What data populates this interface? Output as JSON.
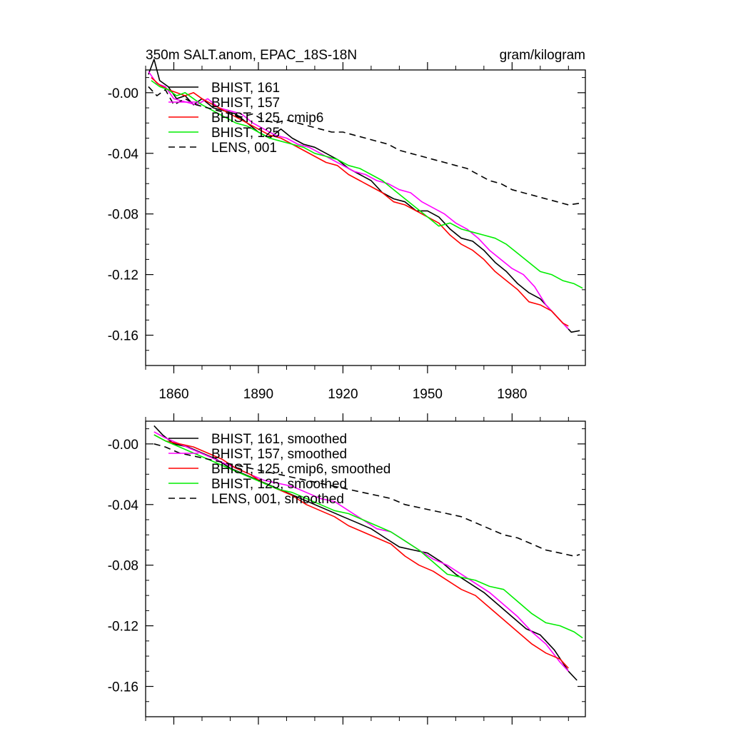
{
  "header": {
    "title": "350m SALT.anom, EPAC_18S-18N",
    "units": "gram/kilogram"
  },
  "colors": {
    "BHIST_161": "#000000",
    "BHIST_157": "#ff00ff",
    "BHIST_125_cmip6": "#ff0000",
    "BHIST_125": "#00ee00",
    "LENS_001": "#000000"
  },
  "chart_data": [
    {
      "type": "line",
      "xlim": [
        1850,
        2006
      ],
      "ylim": [
        -0.18,
        0.015
      ],
      "x_ticks": [
        1860,
        1890,
        1920,
        1950,
        1980
      ],
      "x_tick_labels": [
        "1860",
        "1890",
        "1920",
        "1950",
        "1980"
      ],
      "y_ticks": [
        0.0,
        -0.04,
        -0.08,
        -0.12,
        -0.16
      ],
      "y_tick_labels": [
        "-0.00",
        "-0.04",
        "-0.08",
        "-0.12",
        "-0.16"
      ],
      "legend_position": "top-left",
      "series": [
        {
          "name": "BHIST, 161",
          "color": "#000000",
          "dash": "solid",
          "x": [
            1851,
            1853,
            1855,
            1858,
            1861,
            1864,
            1867,
            1870,
            1874,
            1878,
            1882,
            1886,
            1890,
            1894,
            1898,
            1902,
            1906,
            1910,
            1914,
            1918,
            1922,
            1926,
            1930,
            1934,
            1938,
            1942,
            1946,
            1950,
            1954,
            1958,
            1962,
            1966,
            1970,
            1974,
            1978,
            1982,
            1986,
            1990,
            1994,
            1998,
            2001,
            2004
          ],
          "y": [
            0.012,
            0.022,
            0.008,
            0.004,
            -0.004,
            -0.002,
            -0.008,
            -0.004,
            -0.01,
            -0.012,
            -0.014,
            -0.02,
            -0.026,
            -0.03,
            -0.024,
            -0.03,
            -0.034,
            -0.036,
            -0.04,
            -0.044,
            -0.05,
            -0.054,
            -0.058,
            -0.066,
            -0.07,
            -0.072,
            -0.078,
            -0.078,
            -0.082,
            -0.09,
            -0.096,
            -0.098,
            -0.104,
            -0.112,
            -0.118,
            -0.126,
            -0.132,
            -0.136,
            -0.144,
            -0.152,
            -0.158,
            -0.157
          ]
        },
        {
          "name": "BHIST, 157",
          "color": "#ff00ff",
          "dash": "solid",
          "x": [
            1851,
            1854,
            1857,
            1860,
            1864,
            1868,
            1872,
            1876,
            1880,
            1884,
            1888,
            1892,
            1896,
            1900,
            1904,
            1908,
            1912,
            1916,
            1920,
            1924,
            1928,
            1932,
            1936,
            1940,
            1944,
            1948,
            1952,
            1956,
            1960,
            1964,
            1968,
            1972,
            1976,
            1980,
            1984,
            1988,
            1992,
            1996,
            2000
          ],
          "y": [
            0.014,
            0.006,
            0.004,
            -0.004,
            -0.006,
            -0.008,
            -0.004,
            -0.01,
            -0.012,
            -0.014,
            -0.02,
            -0.024,
            -0.028,
            -0.03,
            -0.034,
            -0.036,
            -0.04,
            -0.044,
            -0.048,
            -0.052,
            -0.054,
            -0.058,
            -0.06,
            -0.064,
            -0.066,
            -0.072,
            -0.076,
            -0.08,
            -0.086,
            -0.09,
            -0.096,
            -0.104,
            -0.11,
            -0.116,
            -0.12,
            -0.128,
            -0.14,
            -0.148,
            -0.156
          ]
        },
        {
          "name": "BHIST, 125, cmip6",
          "color": "#ff0000",
          "dash": "solid",
          "x": [
            1852,
            1855,
            1858,
            1861,
            1864,
            1867,
            1870,
            1874,
            1878,
            1882,
            1886,
            1890,
            1894,
            1898,
            1902,
            1906,
            1910,
            1914,
            1918,
            1922,
            1926,
            1930,
            1934,
            1938,
            1942,
            1946,
            1950,
            1954,
            1958,
            1962,
            1966,
            1970,
            1974,
            1978,
            1982,
            1986,
            1990,
            1994,
            1998,
            2000
          ],
          "y": [
            0.01,
            0.005,
            0.002,
            0.0,
            -0.002,
            0.0,
            -0.004,
            -0.008,
            -0.012,
            -0.016,
            -0.02,
            -0.024,
            -0.028,
            -0.03,
            -0.034,
            -0.038,
            -0.042,
            -0.046,
            -0.048,
            -0.054,
            -0.058,
            -0.062,
            -0.066,
            -0.072,
            -0.074,
            -0.078,
            -0.082,
            -0.086,
            -0.094,
            -0.1,
            -0.104,
            -0.11,
            -0.118,
            -0.124,
            -0.13,
            -0.138,
            -0.14,
            -0.144,
            -0.152,
            -0.154
          ]
        },
        {
          "name": "BHIST, 125",
          "color": "#00ee00",
          "dash": "solid",
          "x": [
            1852,
            1855,
            1858,
            1861,
            1864,
            1867,
            1870,
            1874,
            1878,
            1882,
            1886,
            1890,
            1894,
            1898,
            1902,
            1906,
            1910,
            1914,
            1918,
            1922,
            1926,
            1930,
            1934,
            1938,
            1942,
            1946,
            1950,
            1954,
            1958,
            1962,
            1966,
            1970,
            1974,
            1978,
            1982,
            1986,
            1990,
            1994,
            1998,
            2002,
            2005
          ],
          "y": [
            0.008,
            0.004,
            0.002,
            -0.002,
            0.0,
            -0.004,
            -0.008,
            -0.012,
            -0.016,
            -0.02,
            -0.022,
            -0.026,
            -0.03,
            -0.032,
            -0.034,
            -0.036,
            -0.04,
            -0.042,
            -0.044,
            -0.048,
            -0.05,
            -0.054,
            -0.058,
            -0.064,
            -0.07,
            -0.076,
            -0.082,
            -0.088,
            -0.086,
            -0.09,
            -0.092,
            -0.094,
            -0.096,
            -0.1,
            -0.106,
            -0.112,
            -0.118,
            -0.12,
            -0.124,
            -0.126,
            -0.129
          ]
        },
        {
          "name": "LENS, 001",
          "color": "#000000",
          "dash": "dashed",
          "x": [
            1851,
            1854,
            1857,
            1860,
            1864,
            1868,
            1872,
            1876,
            1880,
            1884,
            1888,
            1892,
            1896,
            1900,
            1904,
            1908,
            1912,
            1916,
            1920,
            1924,
            1928,
            1932,
            1936,
            1940,
            1944,
            1948,
            1952,
            1956,
            1960,
            1964,
            1968,
            1972,
            1976,
            1980,
            1984,
            1988,
            1992,
            1996,
            2000,
            2004
          ],
          "y": [
            0.004,
            -0.002,
            0.002,
            -0.008,
            -0.004,
            -0.008,
            -0.01,
            -0.012,
            -0.014,
            -0.016,
            -0.014,
            -0.018,
            -0.02,
            -0.018,
            -0.02,
            -0.022,
            -0.024,
            -0.026,
            -0.026,
            -0.028,
            -0.03,
            -0.032,
            -0.034,
            -0.038,
            -0.04,
            -0.042,
            -0.044,
            -0.046,
            -0.048,
            -0.05,
            -0.054,
            -0.058,
            -0.06,
            -0.064,
            -0.066,
            -0.068,
            -0.07,
            -0.072,
            -0.074,
            -0.073
          ]
        }
      ]
    },
    {
      "type": "line",
      "xlim": [
        1850,
        2006
      ],
      "ylim": [
        -0.18,
        0.015
      ],
      "x_ticks": [
        1860,
        1890,
        1920,
        1950,
        1980
      ],
      "y_ticks": [
        0.0,
        -0.04,
        -0.08,
        -0.12,
        -0.16
      ],
      "y_tick_labels": [
        "-0.00",
        "-0.04",
        "-0.08",
        "-0.12",
        "-0.16"
      ],
      "legend_position": "top-left",
      "series": [
        {
          "name": "BHIST, 161, smoothed",
          "color": "#000000",
          "dash": "solid",
          "x": [
            1853,
            1856,
            1860,
            1865,
            1870,
            1875,
            1880,
            1885,
            1890,
            1895,
            1900,
            1905,
            1910,
            1915,
            1920,
            1925,
            1930,
            1935,
            1940,
            1945,
            1950,
            1955,
            1960,
            1965,
            1970,
            1975,
            1980,
            1985,
            1990,
            1995,
            2000,
            2003
          ],
          "y": [
            0.012,
            0.006,
            0.0,
            -0.002,
            -0.006,
            -0.01,
            -0.016,
            -0.02,
            -0.024,
            -0.028,
            -0.032,
            -0.036,
            -0.04,
            -0.044,
            -0.048,
            -0.052,
            -0.056,
            -0.062,
            -0.068,
            -0.07,
            -0.072,
            -0.078,
            -0.086,
            -0.092,
            -0.098,
            -0.106,
            -0.114,
            -0.122,
            -0.126,
            -0.136,
            -0.15,
            -0.156
          ]
        },
        {
          "name": "BHIST, 157, smoothed",
          "color": "#ff00ff",
          "dash": "solid",
          "x": [
            1853,
            1857,
            1862,
            1867,
            1872,
            1877,
            1882,
            1887,
            1892,
            1897,
            1902,
            1907,
            1912,
            1917,
            1922,
            1927,
            1932,
            1937,
            1942,
            1947,
            1952,
            1957,
            1962,
            1967,
            1972,
            1977,
            1982,
            1987,
            1992,
            1997,
            2000
          ],
          "y": [
            0.008,
            0.004,
            0.0,
            -0.004,
            -0.008,
            -0.012,
            -0.016,
            -0.02,
            -0.024,
            -0.026,
            -0.028,
            -0.032,
            -0.036,
            -0.038,
            -0.044,
            -0.05,
            -0.056,
            -0.058,
            -0.064,
            -0.07,
            -0.076,
            -0.08,
            -0.086,
            -0.092,
            -0.098,
            -0.106,
            -0.114,
            -0.124,
            -0.132,
            -0.144,
            -0.15
          ]
        },
        {
          "name": "BHIST, 125, cmip6, smoothed",
          "color": "#ff0000",
          "dash": "solid",
          "x": [
            1853,
            1857,
            1862,
            1867,
            1872,
            1877,
            1882,
            1887,
            1892,
            1897,
            1902,
            1907,
            1912,
            1917,
            1922,
            1927,
            1932,
            1937,
            1942,
            1947,
            1952,
            1957,
            1962,
            1967,
            1972,
            1977,
            1982,
            1987,
            1992,
            1997,
            2000
          ],
          "y": [
            0.006,
            0.002,
            0.0,
            -0.002,
            -0.006,
            -0.01,
            -0.016,
            -0.02,
            -0.026,
            -0.03,
            -0.034,
            -0.04,
            -0.044,
            -0.048,
            -0.054,
            -0.058,
            -0.062,
            -0.066,
            -0.074,
            -0.08,
            -0.084,
            -0.09,
            -0.096,
            -0.1,
            -0.108,
            -0.116,
            -0.124,
            -0.132,
            -0.138,
            -0.142,
            -0.148
          ]
        },
        {
          "name": "BHIST, 125, smoothed",
          "color": "#00ee00",
          "dash": "solid",
          "x": [
            1853,
            1857,
            1862,
            1867,
            1872,
            1877,
            1882,
            1887,
            1892,
            1897,
            1902,
            1907,
            1912,
            1917,
            1922,
            1927,
            1932,
            1937,
            1942,
            1947,
            1952,
            1957,
            1962,
            1967,
            1972,
            1977,
            1982,
            1987,
            1992,
            1997,
            2002,
            2005
          ],
          "y": [
            0.006,
            0.002,
            -0.002,
            -0.006,
            -0.01,
            -0.014,
            -0.018,
            -0.022,
            -0.026,
            -0.03,
            -0.032,
            -0.036,
            -0.04,
            -0.044,
            -0.046,
            -0.05,
            -0.054,
            -0.058,
            -0.064,
            -0.07,
            -0.078,
            -0.086,
            -0.088,
            -0.09,
            -0.094,
            -0.096,
            -0.104,
            -0.112,
            -0.118,
            -0.12,
            -0.124,
            -0.128
          ]
        },
        {
          "name": "LENS, 001, smoothed",
          "color": "#000000",
          "dash": "dashed",
          "x": [
            1853,
            1857,
            1862,
            1867,
            1872,
            1877,
            1882,
            1887,
            1892,
            1897,
            1902,
            1907,
            1912,
            1917,
            1922,
            1927,
            1932,
            1937,
            1942,
            1947,
            1952,
            1957,
            1962,
            1967,
            1972,
            1977,
            1982,
            1987,
            1992,
            1997,
            2002,
            2004
          ],
          "y": [
            0.0,
            -0.002,
            -0.006,
            -0.008,
            -0.01,
            -0.012,
            -0.014,
            -0.016,
            -0.018,
            -0.02,
            -0.022,
            -0.024,
            -0.026,
            -0.028,
            -0.03,
            -0.032,
            -0.034,
            -0.036,
            -0.04,
            -0.042,
            -0.044,
            -0.046,
            -0.048,
            -0.052,
            -0.056,
            -0.06,
            -0.062,
            -0.066,
            -0.07,
            -0.072,
            -0.074,
            -0.073
          ]
        }
      ]
    }
  ]
}
